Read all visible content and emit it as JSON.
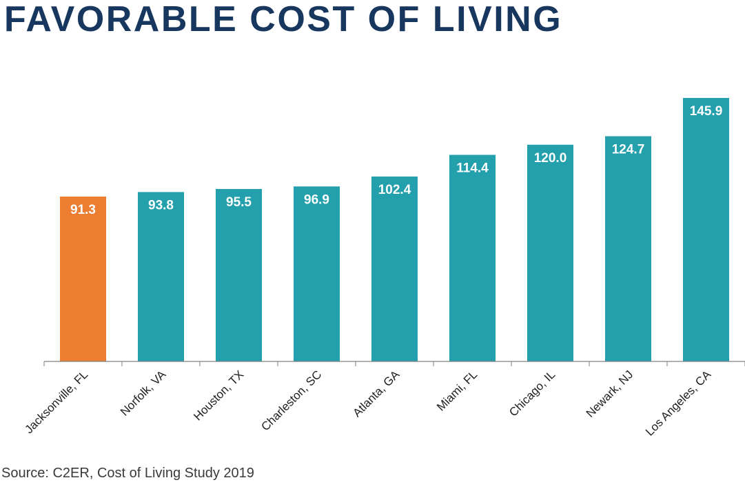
{
  "title": "FAVORABLE COST OF LIVING",
  "source": "Source: C2ER, Cost of Living Study 2019",
  "chart_data": {
    "type": "bar",
    "title": "FAVORABLE COST OF LIVING",
    "xlabel": "",
    "ylabel": "",
    "ylim": [
      0,
      145.9
    ],
    "grid": false,
    "categories": [
      "Jacksonville, FL",
      "Norfolk, VA",
      "Houston, TX",
      "Charleston, SC",
      "Atlanta, GA",
      "Miami, FL",
      "Chicago, IL",
      "Newark, NJ",
      "Los Angeles, CA"
    ],
    "values": [
      91.3,
      93.8,
      95.5,
      96.9,
      102.4,
      114.4,
      120.0,
      124.7,
      145.9
    ],
    "value_labels": [
      "91.3",
      "93.8",
      "95.5",
      "96.9",
      "102.4",
      "114.4",
      "120.0",
      "124.7",
      "145.9"
    ],
    "highlight_color": "#ed7d31",
    "bar_color": "#24a0ad",
    "highlight_index": 0
  }
}
